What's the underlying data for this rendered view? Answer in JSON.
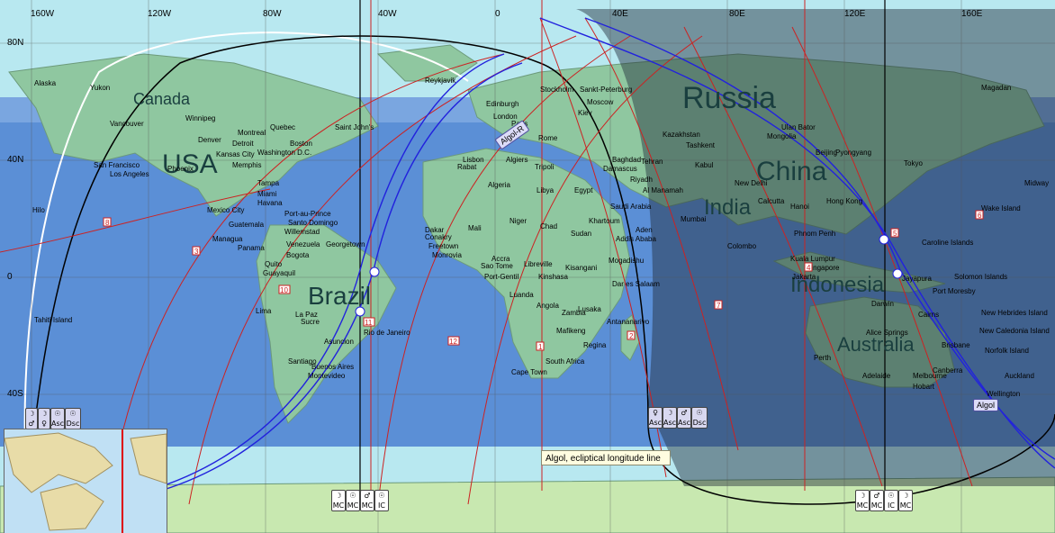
{
  "longitude_ticks": [
    "160W",
    "120W",
    "80W",
    "40W",
    "0",
    "40E",
    "80E",
    "120E",
    "160E"
  ],
  "latitude_ticks": [
    "80N",
    "40N",
    "0",
    "40S"
  ],
  "countries": [
    "Canada",
    "USA",
    "Brazil",
    "Russia",
    "China",
    "India",
    "Indonesia",
    "Australia"
  ],
  "places": [
    "Alaska",
    "Yukon",
    "Reykjavik",
    "Vancouver",
    "Winnipeg",
    "Montreal",
    "Quebec",
    "Saint John's",
    "Boston",
    "Washington D.C.",
    "Denver",
    "Detroit",
    "Kansas City",
    "Memphis",
    "San Francisco",
    "Los Angeles",
    "Phoenix",
    "Tampa",
    "Miami",
    "Havana",
    "Mexico City",
    "Guatemala",
    "Managua",
    "Panama",
    "Port-au-Prince",
    "Santo Domingo",
    "Willemstad",
    "Venezuela",
    "Georgetown",
    "Bogota",
    "Quito",
    "Guayaquil",
    "Lima",
    "La Paz",
    "Sucre",
    "Asuncion",
    "Rio de Janeiro",
    "Santiago",
    "Buenos Aires",
    "Montevideo",
    "Hilo",
    "Tahiti Island",
    "Edinburgh",
    "London",
    "Paris",
    "Stockholm",
    "Sankt-Peterburg",
    "Moscow",
    "Kiev",
    "Rome",
    "Lisbon",
    "Rabat",
    "Algiers",
    "Tripoli",
    "Algeria",
    "Libya",
    "Egypt",
    "Mali",
    "Niger",
    "Chad",
    "Sudan",
    "Dakar",
    "Conakry",
    "Freetown",
    "Monrovia",
    "Accra",
    "Sao Tome",
    "Libreville",
    "Port-Gentil",
    "Luanda",
    "Angola",
    "Zambia",
    "Kinshasa",
    "Kisangani",
    "Khartoum",
    "Addis Ababa",
    "Mogadishu",
    "Dar es Salaam",
    "Lusaka",
    "Antananarivo",
    "Mafikeng",
    "Regina",
    "South Africa",
    "Cape Town",
    "Damascus",
    "Tehran",
    "Baghdad",
    "Al Manamah",
    "Riyadh",
    "Saudi Arabia",
    "Aden",
    "Kazakhstan",
    "Tashkent",
    "Kabul",
    "Mumbai",
    "New Delhi",
    "Calcutta",
    "Colombo",
    "Mongolia",
    "Ulan Bator",
    "Beijing",
    "Pyongyang",
    "Tokyo",
    "Hanoi",
    "Hong Kong",
    "Phnom Penh",
    "Kuala Lumpur",
    "Singapore",
    "Darwin",
    "Cairns",
    "Alice Springs",
    "Perth",
    "Adelaide",
    "Melbourne",
    "Canberra",
    "Brisbane",
    "Hobart",
    "Wellington",
    "Auckland",
    "Norfolk Island",
    "New Caledonia Island",
    "New Hebrides Island",
    "Port Moresby",
    "Caroline Islands",
    "Wake Island",
    "Midway",
    "Jayapura",
    "Jakarta",
    "Solomon Islands",
    "Magadan"
  ],
  "star_labels": {
    "algol_r": "Algol-R",
    "algol": "Algol"
  },
  "line_numbers": [
    "8",
    "3",
    "10",
    "11",
    "12",
    "1",
    "2",
    "5",
    "6",
    "4",
    "7",
    "9"
  ],
  "angle_glyphs": {
    "asc": "Asc",
    "dsc": "Dsc",
    "mc": "MC",
    "ic": "IC"
  },
  "tooltip": "Algol, ecliptical longitude line",
  "colors": {
    "sea": "#5b8fd6",
    "land": "#8fc7a0",
    "polar": "#a8e2e8",
    "night": "#2b3340",
    "red_line": "#cc2222",
    "blue_line": "#2222dd"
  }
}
